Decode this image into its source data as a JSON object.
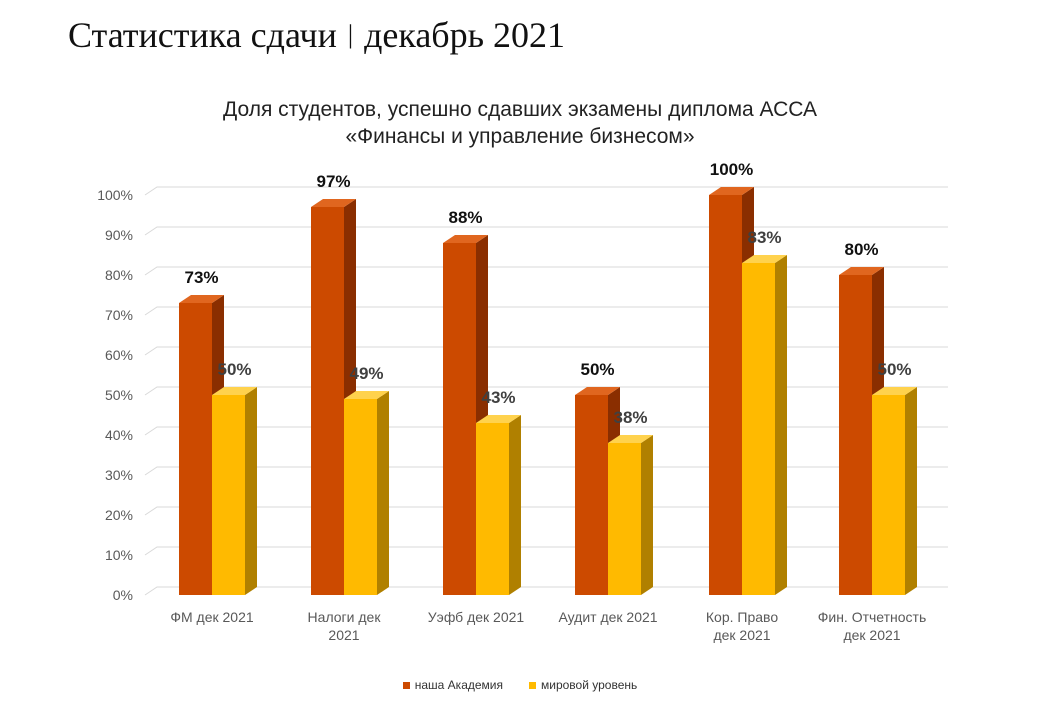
{
  "page": {
    "title_left": "Статистика сдачи",
    "title_separator": "|",
    "title_right": "декабрь 2021"
  },
  "chart_data": {
    "type": "bar",
    "title": [
      "Доля студентов, успешно сдавших экзамены диплома АССА",
      "«Финансы и управление бизнесом»"
    ],
    "categories": [
      [
        "ФМ дек 2021"
      ],
      [
        "Налоги дек",
        "2021"
      ],
      [
        "Уэфб дек 2021"
      ],
      [
        "Аудит дек 2021"
      ],
      [
        "Кор. Право",
        "дек 2021"
      ],
      [
        "Фин. Отчетность",
        "дек 2021"
      ]
    ],
    "series": [
      {
        "name": "наша Академия",
        "values": [
          73,
          97,
          88,
          50,
          100,
          80
        ],
        "labels": [
          "73%",
          "97%",
          "88%",
          "50%",
          "100%",
          "80%"
        ]
      },
      {
        "name": "мировой уровень",
        "values": [
          50,
          49,
          43,
          38,
          83,
          50
        ],
        "labels": [
          "50%",
          "49%",
          "43%",
          "38%",
          "83%",
          "50%"
        ]
      }
    ],
    "yticks": [
      "0%",
      "10%",
      "20%",
      "30%",
      "40%",
      "50%",
      "60%",
      "70%",
      "80%",
      "90%",
      "100%"
    ],
    "ylim": [
      0,
      100
    ],
    "grid": true,
    "three_d": true,
    "legend_position": "bottom"
  },
  "colors": {
    "academy_front": "#CC4A00",
    "academy_side": "#8A2E00",
    "academy_top": "#E0661F",
    "world_front": "#FFBA00",
    "world_side": "#B08000",
    "world_top": "#FFD24D",
    "grid": "#D9D9D9",
    "label_academy": "#111111",
    "label_world": "#404040"
  }
}
